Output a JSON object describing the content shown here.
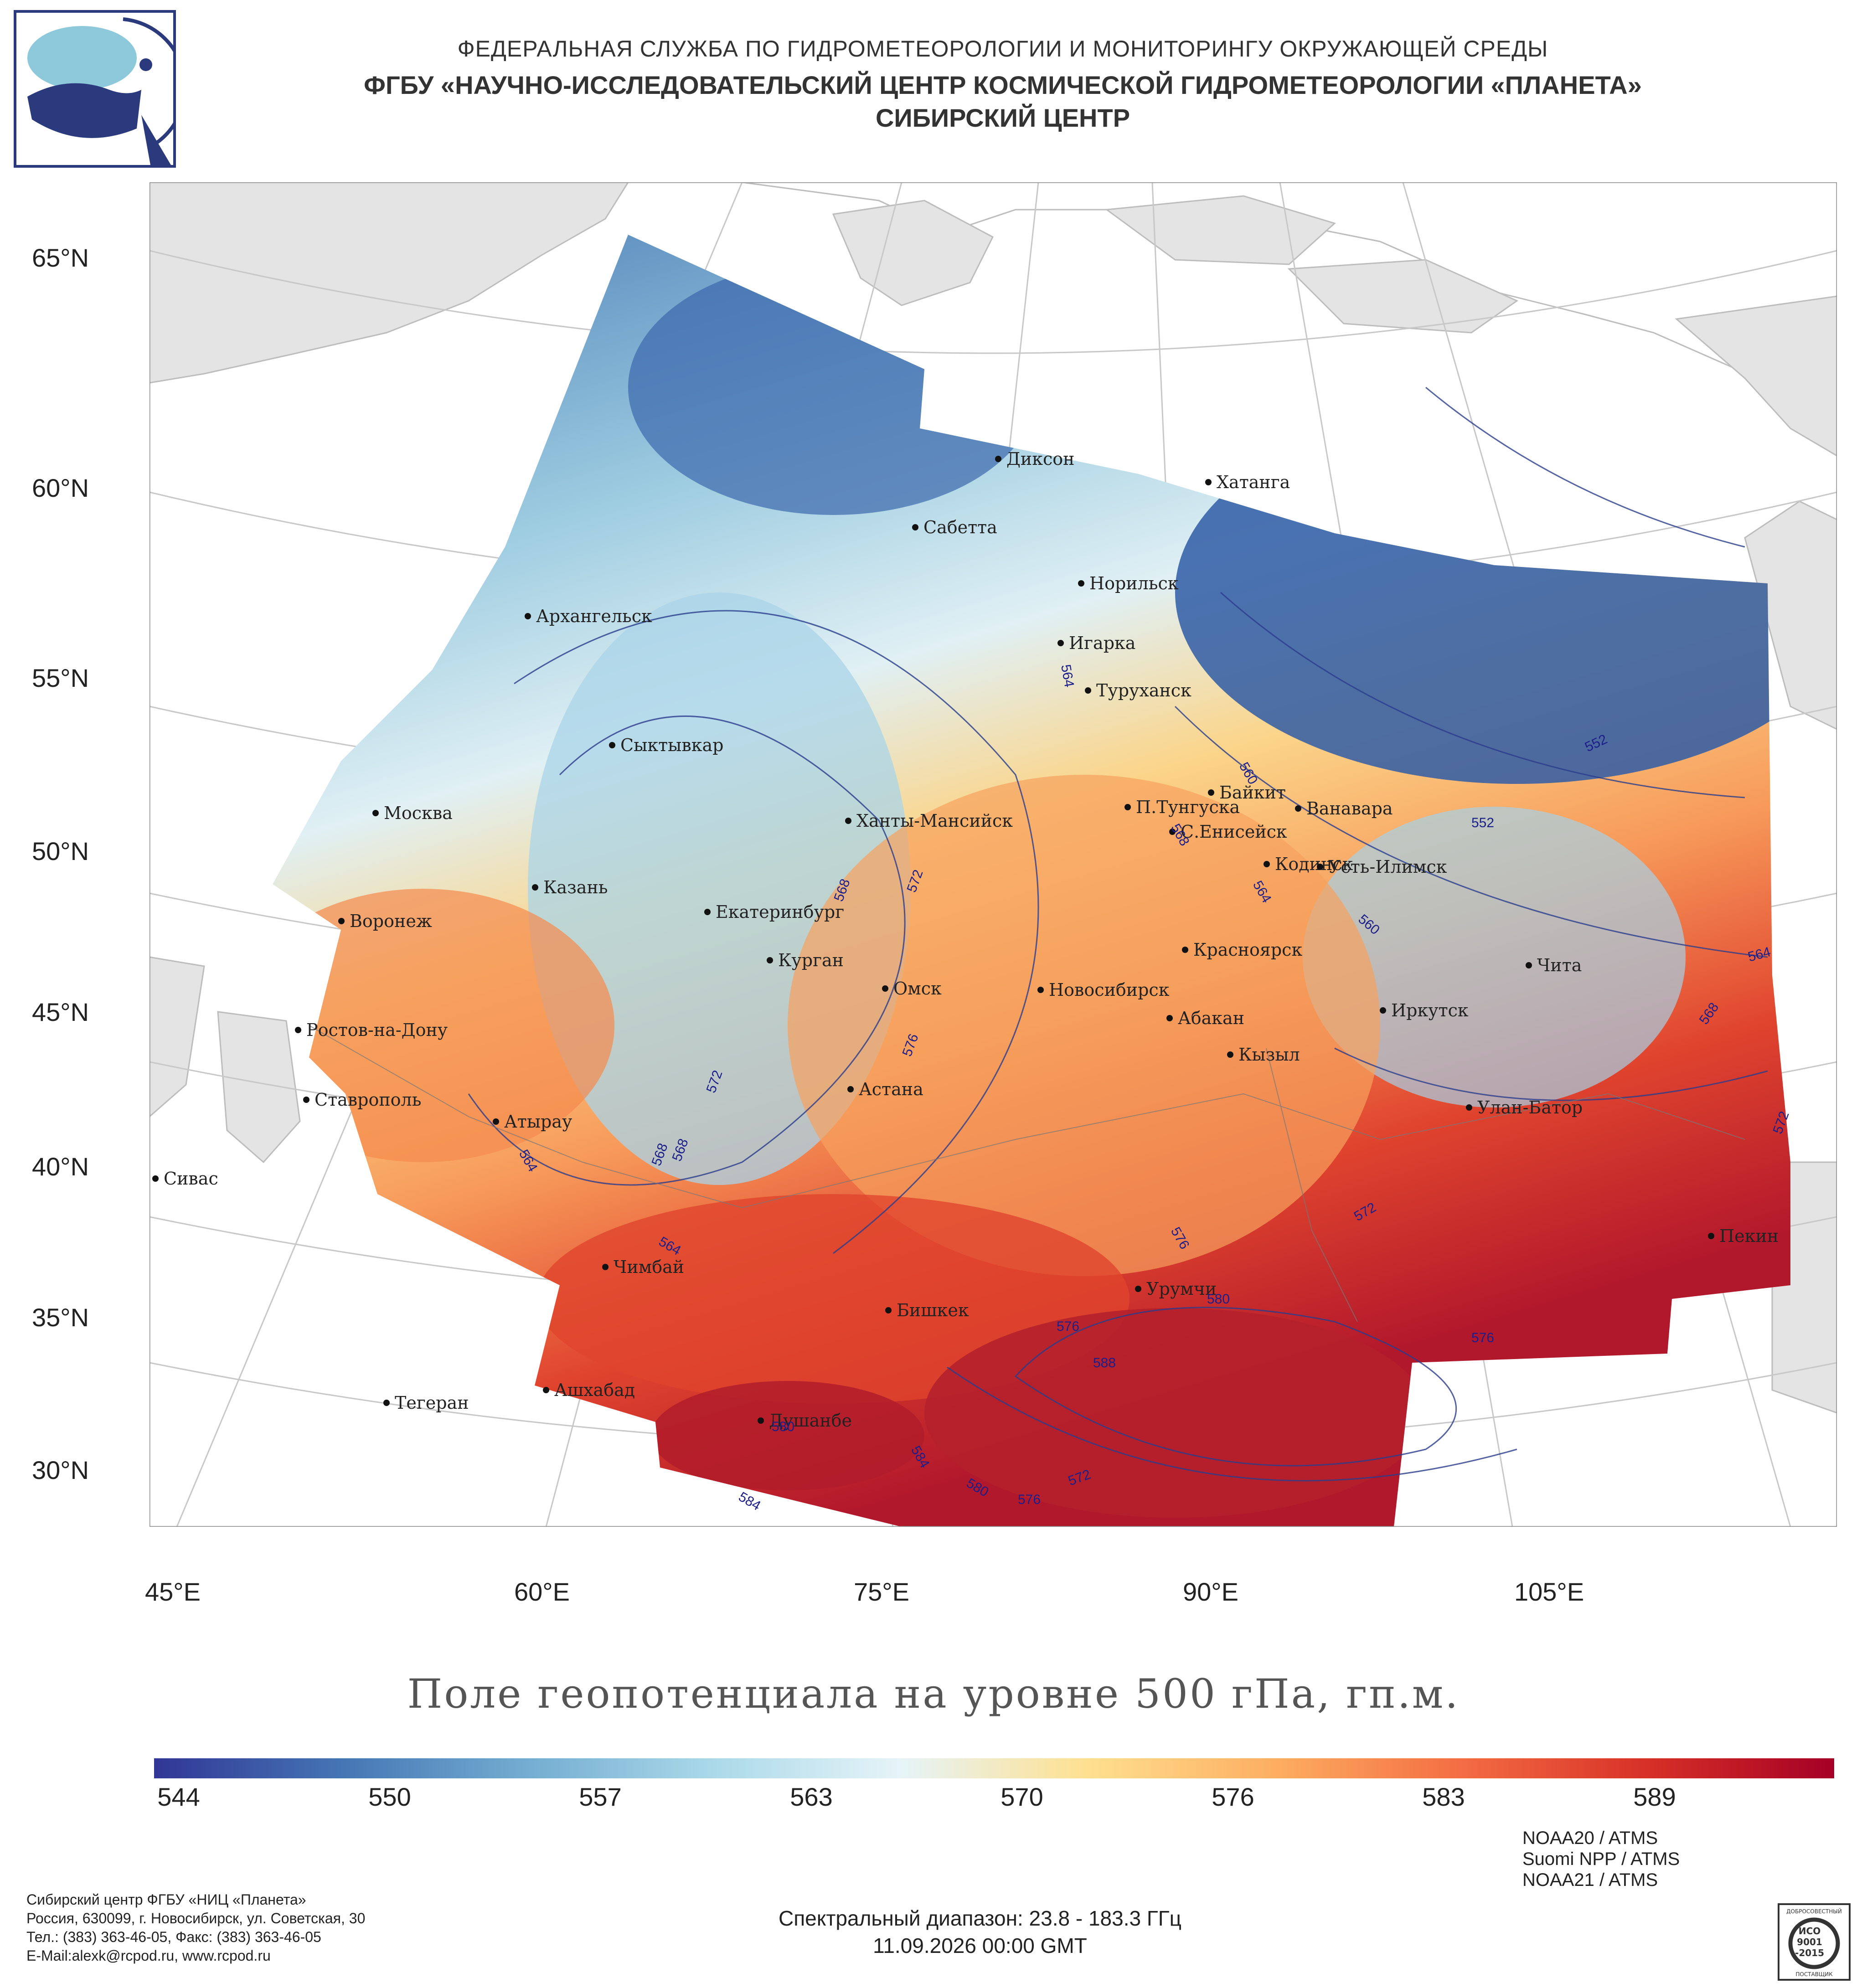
{
  "header": {
    "agency": "ФЕДЕРАЛЬНАЯ СЛУЖБА ПО ГИДРОМЕТЕОРОЛОГИИ И МОНИТОРИНГУ ОКРУЖАЮЩЕЙ СРЕДЫ",
    "institute": "ФГБУ «НАУЧНО-ИССЛЕДОВАТЕЛЬСКИЙ ЦЕНТР КОСМИЧЕСКОЙ ГИДРОМЕТЕОРОЛОГИИ «ПЛАНЕТА»",
    "center": "СИБИРСКИЙ ЦЕНТР"
  },
  "map": {
    "lat_labels": [
      "65°N",
      "60°N",
      "55°N",
      "50°N",
      "45°N",
      "40°N",
      "35°N",
      "30°N"
    ],
    "lon_labels": [
      "45°E",
      "60°E",
      "75°E",
      "90°E",
      "105°E"
    ],
    "cities": [
      "Диксон",
      "Хатанга",
      "Сабетта",
      "Норильск",
      "Архангельск",
      "Игарка",
      "Туруханск",
      "Сыктывкар",
      "Байкит",
      "Москва",
      "Ханты-Мансийск",
      "П.Тунгуска",
      "Ванавара",
      "С.Енисейск",
      "Кодинск",
      "Усть-Илимск",
      "Казань",
      "Екатеринбург",
      "Воронеж",
      "Красноярск",
      "Курган",
      "Чита",
      "Омск",
      "Новосибирск",
      "Абакан",
      "Иркутск",
      "Ростов-на-Дону",
      "Кызыл",
      "Астана",
      "Ставрополь",
      "Улан-Батор",
      "Атырау",
      "Сивас",
      "Пекин",
      "Чимбай",
      "Урумчи",
      "Бишкек",
      "Ашхабад",
      "Тегеран",
      "Душанбе"
    ],
    "contour_labels": [
      "564",
      "560",
      "552",
      "552",
      "568",
      "564",
      "560",
      "568",
      "572",
      "568",
      "564",
      "576",
      "572",
      "568",
      "564",
      "572",
      "564",
      "568",
      "572",
      "576",
      "580",
      "576",
      "588",
      "584",
      "580",
      "576",
      "572",
      "580",
      "584",
      "576"
    ]
  },
  "title": "Поле геопотенциала на уровне 500 гПа, гп.м.",
  "colorbar": {
    "ticks": [
      "544",
      "550",
      "557",
      "563",
      "570",
      "576",
      "583",
      "589"
    ],
    "colors": [
      "#313695",
      "#4575b4",
      "#74add1",
      "#abd9e9",
      "#e6f4f8",
      "#fee090",
      "#fdae61",
      "#f46d43",
      "#d73027",
      "#a50026"
    ]
  },
  "footer": {
    "org": "Сибирский центр ФГБУ «НИЦ «Планета»",
    "address": "Россия, 630099, г. Новосибирск, ул. Советская, 30",
    "phones": "Тел.: (383) 363-46-05, Факс: (383) 363-46-05",
    "email": "E-Mail:alexk@rcpod.ru, www.rcpod.ru",
    "satellites": [
      "NOAA20 / ATMS",
      "Suomi NPP / ATMS",
      "NOAA21 / ATMS"
    ],
    "spectral": "Спектральный диапазон: 23.8 - 183.3 ГГц",
    "datetime": "11.09.2026 00:00 GMT"
  },
  "iso_badge": {
    "top": "ДОБРОСОВЕСТНЫЙ",
    "iso": "ИСО",
    "num": "9001",
    "year": "-2015",
    "bottom": "ПОСТАВЩИК"
  }
}
